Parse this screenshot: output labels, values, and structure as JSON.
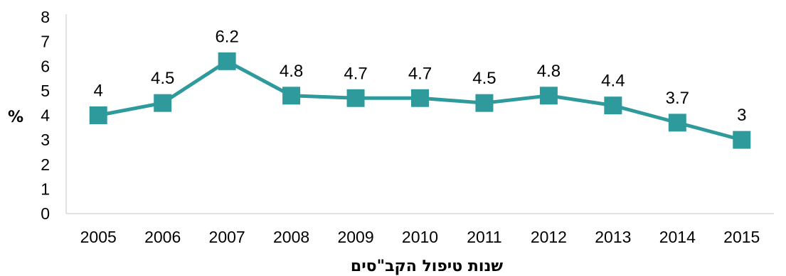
{
  "chart_data": {
    "type": "line",
    "title": "",
    "xlabel": "שנות טיפול הקב\"סים",
    "ylabel": "%",
    "x": [
      "2005",
      "2006",
      "2007",
      "2008",
      "2009",
      "2010",
      "2011",
      "2012",
      "2013",
      "2014",
      "2015"
    ],
    "y_ticks": [
      "0",
      "1",
      "2",
      "3",
      "4",
      "5",
      "6",
      "7",
      "8"
    ],
    "ylim": [
      0,
      8
    ],
    "grid": false,
    "legend": "none",
    "series": [
      {
        "values": [
          4,
          4.5,
          6.2,
          4.8,
          4.7,
          4.7,
          4.5,
          4.8,
          4.4,
          3.7,
          3
        ],
        "data_labels": [
          "4",
          "4.5",
          "6.2",
          "4.8",
          "4.7",
          "4.7",
          "4.5",
          "4.8",
          "4.4",
          "3.7",
          "3"
        ],
        "color": "#2e9a9c",
        "marker": "square"
      }
    ],
    "axis_color": "#d9d9d9"
  }
}
